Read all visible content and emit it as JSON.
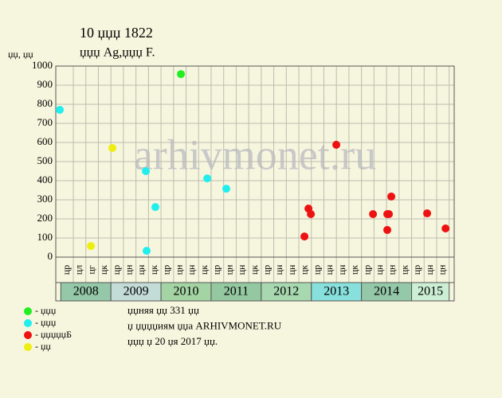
{
  "chart_data": {
    "type": "scatter",
    "title": "10 џџџ 1822",
    "subtitle": "џџџ Ag,џџџ F.",
    "y_label": "џџ, џџ",
    "watermark": "arhivmonet.ru",
    "xlim": [
      -0.4,
      31.4
    ],
    "ylim": [
      0,
      1000
    ],
    "yticks": [
      0,
      100,
      200,
      300,
      400,
      500,
      600,
      700,
      800,
      900,
      1000
    ],
    "grid": true,
    "years": [
      {
        "label": "2008",
        "color": "#94c8a8",
        "columns": [
          "цр",
          "цл",
          "цг",
          "цк"
        ]
      },
      {
        "label": "2009",
        "color": "#c4dcd8",
        "columns": [
          "цр",
          "цн",
          "цн",
          "цк"
        ]
      },
      {
        "label": "2010",
        "color": "#a4d4a4",
        "columns": [
          "цр",
          "цн",
          "цн",
          "цк"
        ]
      },
      {
        "label": "2011",
        "color": "#94c8a0",
        "columns": [
          "цр",
          "цн",
          "цн",
          "цк"
        ]
      },
      {
        "label": "2012",
        "color": "#a8d8b0",
        "columns": [
          "цр",
          "цн",
          "цн",
          "цк"
        ]
      },
      {
        "label": "2013",
        "color": "#88e0dc",
        "columns": [
          "цр",
          "цн",
          "цн",
          "цк"
        ]
      },
      {
        "label": "2014",
        "color": "#94c8a8",
        "columns": [
          "цр",
          "цн",
          "цн",
          "цк"
        ]
      },
      {
        "label": "2015",
        "color": "#cceed4",
        "columns": [
          "цр",
          "цн",
          "цн"
        ]
      }
    ],
    "series": [
      {
        "name": "- џџџ",
        "color": "#22ee22",
        "x": [
          9.59
        ],
        "values": [
          958
        ]
      },
      {
        "name": "- џџџ",
        "color": "#22eeee",
        "x": [
          -0.08,
          6.79,
          6.85,
          7.55,
          11.69,
          13.21
        ],
        "values": [
          771,
          450,
          33,
          262,
          412,
          358
        ]
      },
      {
        "name": "- џџџџџБ",
        "color": "#ee1111",
        "x": [
          19.45,
          19.77,
          19.96,
          21.99,
          24.92,
          26.06,
          26.06,
          26.19,
          26.38,
          29.24,
          30.71
        ],
        "values": [
          108,
          254,
          225,
          588,
          225,
          142,
          225,
          225,
          317,
          229,
          150
        ]
      },
      {
        "name": "- џџ",
        "color": "#eeee11",
        "x": [
          2.4,
          4.12
        ],
        "values": [
          58,
          571
        ]
      }
    ],
    "footer": [
      "џџняя џџ 331 џџ",
      "џ џџџџиям џџа ARHIVMONET.RU",
      "џџџ џ 20 џя 2017 џџ."
    ]
  }
}
